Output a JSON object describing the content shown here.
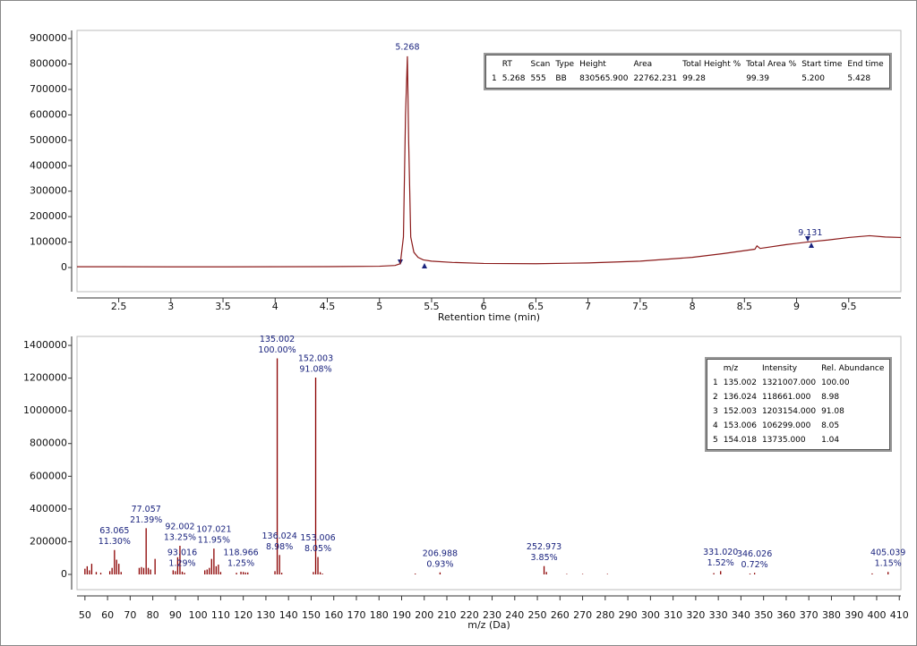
{
  "chart_data": [
    {
      "type": "line",
      "x_label": "Retention time (min)",
      "xlim": [
        2.1,
        10.0
      ],
      "xticks": [
        2.5,
        3.0,
        3.5,
        4.0,
        4.5,
        5.0,
        5.5,
        6.0,
        6.5,
        7.0,
        7.5,
        8.0,
        8.5,
        9.0,
        9.5
      ],
      "ylim": [
        -95000,
        932000
      ],
      "yticks": [
        0,
        100000,
        200000,
        300000,
        400000,
        500000,
        600000,
        700000,
        800000,
        900000
      ],
      "series": [
        {
          "color": "#8b1a1a",
          "x": [
            2.1,
            2.5,
            3.0,
            3.5,
            4.0,
            4.5,
            5.0,
            5.15,
            5.2,
            5.23,
            5.25,
            5.268,
            5.28,
            5.3,
            5.33,
            5.37,
            5.42,
            5.5,
            5.7,
            6.0,
            6.5,
            7.0,
            7.5,
            8.0,
            8.3,
            8.6,
            8.62,
            8.65,
            8.9,
            9.1,
            9.3,
            9.5,
            9.7,
            9.85,
            10.0
          ],
          "values": [
            3000,
            3000,
            2500,
            2500,
            3000,
            3500,
            5000,
            8000,
            15000,
            120000,
            600000,
            830566,
            500000,
            120000,
            60000,
            40000,
            30000,
            25000,
            20000,
            16000,
            15000,
            18000,
            25000,
            40000,
            55000,
            72000,
            85000,
            75000,
            90000,
            100000,
            108000,
            118000,
            125000,
            120000,
            118000
          ]
        }
      ],
      "annotations": [
        {
          "x": 5.268,
          "y": 830566
        },
        {
          "x": 9.131,
          "y": 100000
        }
      ]
    },
    {
      "type": "bar",
      "x_label": "m/z (Da)",
      "xlim": [
        46.5,
        410.7
      ],
      "xticks": [
        50,
        60,
        70,
        80,
        90,
        100,
        110,
        120,
        130,
        140,
        150,
        160,
        170,
        180,
        190,
        200,
        210,
        220,
        230,
        240,
        250,
        260,
        270,
        280,
        290,
        300,
        310,
        320,
        330,
        340,
        350,
        360,
        370,
        380,
        390,
        400,
        410
      ],
      "ylim": [
        -93000,
        1455000
      ],
      "yticks": [
        0,
        200000,
        400000,
        600000,
        800000,
        1000000,
        1200000,
        1400000
      ],
      "series": [
        {
          "color": "#8b0000",
          "x": [
            50,
            51,
            52,
            53,
            55,
            57,
            61,
            62,
            63.065,
            64,
            65,
            66,
            74,
            75,
            76,
            77.057,
            78,
            79,
            81,
            89,
            90,
            91,
            92.002,
            93.016,
            94,
            103,
            104,
            105,
            106,
            107.021,
            108,
            109,
            110,
            117,
            118.966,
            120,
            121,
            122,
            134,
            135.002,
            136.024,
            137,
            151,
            152.003,
            153.006,
            154.018,
            155,
            196,
            206.988,
            252.973,
            254,
            263,
            270,
            281,
            328,
            331.02,
            344,
            346.026,
            398,
            405.039
          ],
          "values": [
            35000,
            50000,
            25000,
            65000,
            15000,
            10000,
            20000,
            40000,
            149274,
            90000,
            65000,
            15000,
            40000,
            45000,
            40000,
            282563,
            40000,
            30000,
            95000,
            25000,
            20000,
            105000,
            175033,
            17041,
            10000,
            25000,
            30000,
            40000,
            95000,
            157860,
            50000,
            60000,
            15000,
            10000,
            16513,
            15000,
            12000,
            12000,
            20000,
            1321007,
            118661,
            10000,
            15000,
            1203154,
            106299,
            13735,
            5000,
            5000,
            12285,
            50859,
            15000,
            3000,
            3000,
            3000,
            8000,
            20079,
            5000,
            9511,
            6000,
            15192
          ],
          "x_labels": [
            null,
            null,
            null,
            null,
            null,
            null,
            null,
            null,
            "63.065",
            null,
            null,
            null,
            null,
            null,
            null,
            "77.057",
            null,
            null,
            null,
            null,
            null,
            null,
            "92.002",
            "93.016",
            null,
            null,
            null,
            null,
            null,
            "107.021",
            null,
            null,
            null,
            null,
            "118.966",
            null,
            null,
            null,
            null,
            "135.002",
            "136.024",
            null,
            null,
            "152.003",
            "153.006",
            null,
            null,
            null,
            "206.988",
            "252.973",
            null,
            null,
            null,
            null,
            null,
            "331.020",
            null,
            "346.026",
            null,
            "405.039"
          ],
          "abundance_labels": [
            null,
            null,
            null,
            null,
            null,
            null,
            null,
            null,
            "11.30%",
            null,
            null,
            null,
            null,
            null,
            null,
            "21.39%",
            null,
            null,
            null,
            null,
            null,
            null,
            "13.25%",
            "1.29%",
            null,
            null,
            null,
            null,
            null,
            "11.95%",
            null,
            null,
            null,
            null,
            "1.25%",
            null,
            null,
            null,
            null,
            "100.00%",
            "8.98%",
            null,
            null,
            "91.08%",
            "8.05%",
            null,
            null,
            null,
            "0.93%",
            "3.85%",
            null,
            null,
            null,
            null,
            null,
            "1.52%",
            null,
            "0.72%",
            null,
            "1.15%"
          ]
        }
      ]
    }
  ],
  "peak_table": {
    "columns": [
      "RT",
      "Scan",
      "Type",
      "Height",
      "Area",
      "Total Height %",
      "Total Area %",
      "Start time",
      "End time"
    ],
    "rows": [
      [
        "1",
        "5.268",
        "555",
        "BB",
        "830565.900",
        "22762.231",
        "99.28",
        "99.39",
        "5.200",
        "5.428"
      ]
    ]
  },
  "ion_table": {
    "columns": [
      "m/z",
      "Intensity",
      "Rel. Abundance"
    ],
    "rows": [
      [
        "1",
        "135.002",
        "1321007.000",
        "100.00"
      ],
      [
        "2",
        "136.024",
        "118661.000",
        "8.98"
      ],
      [
        "3",
        "152.003",
        "1203154.000",
        "91.08"
      ],
      [
        "4",
        "153.006",
        "106299.000",
        "8.05"
      ],
      [
        "5",
        "154.018",
        "13735.000",
        "1.04"
      ]
    ]
  }
}
